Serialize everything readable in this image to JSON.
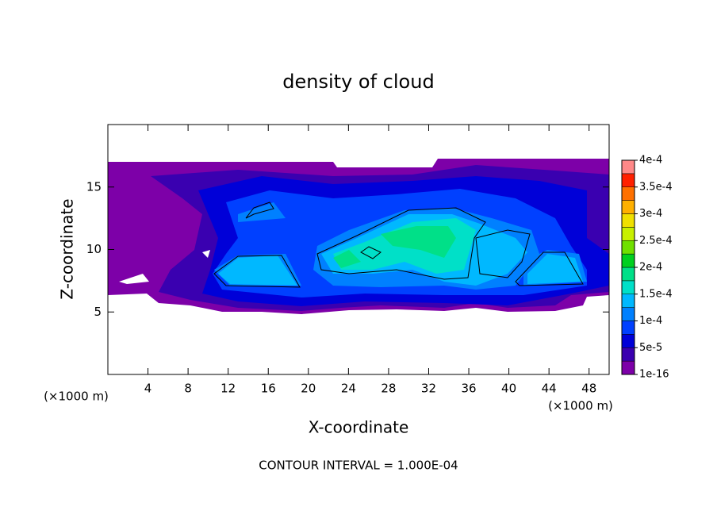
{
  "chart_data": {
    "type": "contour",
    "title": "density of cloud",
    "xlabel": "X-coordinate",
    "ylabel": "Z-coordinate",
    "x_unit_labels": [
      "(×1000 m)",
      "(×1000 m)"
    ],
    "footer": "CONTOUR INTERVAL = 1.000E-04",
    "xlim": [
      0,
      50
    ],
    "xticks": [
      4,
      8,
      12,
      16,
      20,
      24,
      28,
      32,
      36,
      40,
      44,
      48
    ],
    "ylim": [
      0,
      20
    ],
    "yticks": [
      5,
      10,
      15
    ],
    "colorbar": {
      "ticks": [
        {
          "value": 1e-16,
          "label": "1e-16"
        },
        {
          "value": 5e-05,
          "label": "5e-5"
        },
        {
          "value": 0.0001,
          "label": "1e-4"
        },
        {
          "value": 0.00015,
          "label": "1.5e-4"
        },
        {
          "value": 0.0002,
          "label": "2e-4"
        },
        {
          "value": 0.00025,
          "label": "2.5e-4"
        },
        {
          "value": 0.0003,
          "label": "3e-4"
        },
        {
          "value": 0.00035,
          "label": "3.5e-4"
        },
        {
          "value": 0.0004,
          "label": "4e-4"
        }
      ],
      "colors": [
        "#7d00a8",
        "#3a00b0",
        "#0000d8",
        "#0040ff",
        "#0080ff",
        "#00b8ff",
        "#00e0c8",
        "#00e088",
        "#00d020",
        "#70e000",
        "#c8f000",
        "#f0e000",
        "#ffb000",
        "#ff7000",
        "#ff2000",
        "#ff8888"
      ]
    }
  }
}
